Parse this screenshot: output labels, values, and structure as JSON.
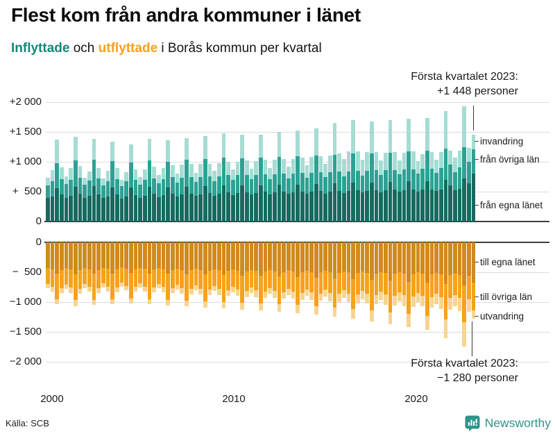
{
  "title": "Flest kom från andra kommuner i länet",
  "subtitle": {
    "inflyttade": "Inflyttade",
    "conjunction": " och ",
    "utflyttade": "utflyttade",
    "rest": " i Borås kommun per kvartal"
  },
  "annotation_top": {
    "line1": "Första kvartalet 2023:",
    "line2": "+1 448 personer"
  },
  "annotation_bottom": {
    "line1": "Första kvartalet 2023:",
    "line2": "−1 280 personer"
  },
  "source": "Källa: SCB",
  "brand": {
    "name": "Newsworthy"
  },
  "colors": {
    "teal_dark": "#176a60",
    "teal_mid": "#2da294",
    "teal_light": "#a6dcd4",
    "orange_dark": "#d08a1e",
    "orange_mid": "#f6a21c",
    "orange_light": "#f8d492",
    "accent_inflyttade": "#17857a",
    "accent_utflyttade": "#f6a11f",
    "grid": "#dcdcdc",
    "axis": "#3d3d3d",
    "brand_teal": "#2f948b"
  },
  "chart_data": {
    "type": "bar",
    "stacked": true,
    "grid": true,
    "x_axis": {
      "start": "2000 Q1",
      "end": "2023 Q1",
      "tick_labels": [
        "2000",
        "2010",
        "2020"
      ],
      "unit": "kvartal"
    },
    "top": {
      "group_label": "Inflyttade",
      "ylim": [
        0,
        2000
      ],
      "yticks": [
        {
          "label": "+2 000",
          "value": 2000
        },
        {
          "label": "+1 500",
          "value": 1500
        },
        {
          "label": "+1 000",
          "value": 1000
        },
        {
          "label": "+  500",
          "value": 500
        },
        {
          "label": "0",
          "value": 0
        }
      ],
      "legend": [
        "invandring",
        "från övriga län",
        "från egna länet"
      ],
      "series": [
        {
          "key": "fran-egna-lanet",
          "name": "från egna länet",
          "color": "#176a60",
          "values": [
            390,
            420,
            560,
            450,
            400,
            430,
            580,
            460,
            395,
            425,
            590,
            455,
            390,
            420,
            575,
            450,
            385,
            415,
            565,
            445,
            400,
            430,
            580,
            460,
            410,
            440,
            570,
            465,
            420,
            450,
            585,
            470,
            425,
            455,
            595,
            475,
            435,
            465,
            610,
            485,
            445,
            475,
            600,
            490,
            450,
            480,
            605,
            495,
            455,
            485,
            615,
            500,
            460,
            490,
            620,
            505,
            465,
            495,
            630,
            510,
            470,
            500,
            640,
            515,
            480,
            510,
            650,
            520,
            485,
            515,
            655,
            525,
            490,
            520,
            660,
            530,
            495,
            525,
            670,
            535,
            500,
            530,
            680,
            540,
            510,
            540,
            700,
            600,
            520,
            550,
            720,
            640,
            800
          ]
        },
        {
          "key": "fran-ovriga-lan",
          "name": "från övriga län",
          "color": "#2da294",
          "values": [
            215,
            260,
            420,
            260,
            225,
            270,
            440,
            270,
            220,
            265,
            450,
            265,
            215,
            260,
            435,
            260,
            210,
            255,
            425,
            255,
            220,
            265,
            440,
            265,
            230,
            275,
            430,
            275,
            235,
            285,
            445,
            280,
            240,
            290,
            450,
            285,
            245,
            295,
            460,
            290,
            250,
            300,
            455,
            295,
            255,
            305,
            460,
            300,
            260,
            310,
            465,
            305,
            265,
            315,
            470,
            310,
            270,
            320,
            475,
            315,
            275,
            325,
            480,
            320,
            280,
            330,
            485,
            325,
            285,
            335,
            490,
            330,
            290,
            340,
            495,
            335,
            295,
            345,
            500,
            340,
            300,
            350,
            505,
            345,
            305,
            355,
            520,
            350,
            310,
            360,
            530,
            355,
            410
          ]
        },
        {
          "key": "invandring",
          "name": "invandring",
          "color": "#a6dcd4",
          "values": [
            125,
            180,
            390,
            195,
            135,
            190,
            400,
            200,
            115,
            150,
            340,
            170,
            115,
            170,
            330,
            180,
            105,
            160,
            300,
            170,
            130,
            175,
            360,
            195,
            140,
            185,
            360,
            200,
            145,
            215,
            370,
            210,
            155,
            215,
            385,
            210,
            170,
            220,
            410,
            225,
            175,
            225,
            395,
            235,
            180,
            230,
            385,
            235,
            185,
            235,
            420,
            245,
            195,
            245,
            430,
            255,
            205,
            265,
            455,
            265,
            225,
            285,
            530,
            305,
            290,
            330,
            565,
            330,
            265,
            310,
            535,
            310,
            245,
            290,
            545,
            300,
            235,
            280,
            555,
            295,
            215,
            250,
            545,
            275,
            225,
            270,
            630,
            240,
            235,
            280,
            680,
            235,
            238
          ]
        }
      ],
      "highlight": {
        "x": "2023 Q1",
        "total": 1448
      }
    },
    "bottom": {
      "group_label": "Utflyttade",
      "ylim": [
        -2000,
        0
      ],
      "yticks": [
        {
          "label": "0",
          "value": 0
        },
        {
          "label": "−  500",
          "value": -500
        },
        {
          "label": "−1 000",
          "value": -1000
        },
        {
          "label": "−1 500",
          "value": -1500
        },
        {
          "label": "−2 000",
          "value": -2000
        }
      ],
      "legend": [
        "till egna länet",
        "till övriga län",
        "utvandring"
      ],
      "series": [
        {
          "key": "till-egna-lanet",
          "name": "till egna länet",
          "color": "#d08a1e",
          "values": [
            -430,
            -450,
            -520,
            -460,
            -435,
            -455,
            -530,
            -465,
            -430,
            -450,
            -525,
            -460,
            -425,
            -445,
            -520,
            -455,
            -420,
            -440,
            -515,
            -450,
            -425,
            -445,
            -520,
            -455,
            -430,
            -450,
            -525,
            -460,
            -440,
            -460,
            -535,
            -470,
            -445,
            -465,
            -540,
            -475,
            -450,
            -470,
            -550,
            -480,
            -455,
            -475,
            -555,
            -485,
            -460,
            -480,
            -560,
            -490,
            -465,
            -485,
            -570,
            -495,
            -470,
            -490,
            -580,
            -500,
            -475,
            -495,
            -590,
            -505,
            -480,
            -500,
            -600,
            -510,
            -485,
            -505,
            -615,
            -515,
            -490,
            -510,
            -630,
            -520,
            -495,
            -515,
            -645,
            -525,
            -500,
            -520,
            -660,
            -530,
            -505,
            -525,
            -675,
            -535,
            -515,
            -535,
            -700,
            -545,
            -525,
            -545,
            -720,
            -555,
            -675
          ]
        },
        {
          "key": "till-ovriga-lan",
          "name": "till övriga län",
          "color": "#f6a21c",
          "values": [
            -270,
            -300,
            -430,
            -310,
            -275,
            -305,
            -440,
            -315,
            -270,
            -300,
            -435,
            -310,
            -265,
            -295,
            -430,
            -305,
            -260,
            -290,
            -425,
            -300,
            -265,
            -295,
            -430,
            -305,
            -270,
            -300,
            -435,
            -310,
            -275,
            -305,
            -440,
            -315,
            -280,
            -310,
            -445,
            -320,
            -285,
            -315,
            -450,
            -325,
            -290,
            -320,
            -455,
            -330,
            -295,
            -325,
            -460,
            -335,
            -300,
            -330,
            -465,
            -340,
            -305,
            -335,
            -470,
            -345,
            -310,
            -340,
            -480,
            -350,
            -315,
            -345,
            -490,
            -355,
            -320,
            -350,
            -500,
            -360,
            -325,
            -355,
            -510,
            -365,
            -330,
            -360,
            -525,
            -370,
            -335,
            -365,
            -540,
            -375,
            -340,
            -370,
            -555,
            -380,
            -350,
            -380,
            -590,
            -390,
            -360,
            -390,
            -620,
            -400,
            -465
          ]
        },
        {
          "key": "utvandring",
          "name": "utvandring",
          "color": "#f8d492",
          "values": [
            -65,
            -80,
            -90,
            -75,
            -70,
            -85,
            -95,
            -80,
            -65,
            -80,
            -90,
            -75,
            -65,
            -80,
            -90,
            -75,
            -60,
            -75,
            -85,
            -70,
            -65,
            -80,
            -90,
            -75,
            -70,
            -85,
            -95,
            -80,
            -75,
            -90,
            -100,
            -85,
            -80,
            -95,
            -105,
            -90,
            -85,
            -100,
            -110,
            -95,
            -90,
            -105,
            -115,
            -100,
            -95,
            -110,
            -120,
            -105,
            -100,
            -115,
            -125,
            -110,
            -105,
            -120,
            -135,
            -115,
            -110,
            -130,
            -145,
            -125,
            -115,
            -140,
            -155,
            -135,
            -125,
            -150,
            -170,
            -145,
            -135,
            -160,
            -185,
            -155,
            -145,
            -175,
            -200,
            -165,
            -155,
            -185,
            -220,
            -175,
            -150,
            -180,
            -230,
            -180,
            -165,
            -200,
            -310,
            -195,
            -180,
            -220,
            -410,
            -210,
            -140
          ]
        }
      ],
      "highlight": {
        "x": "2023 Q1",
        "total": -1280
      }
    }
  }
}
